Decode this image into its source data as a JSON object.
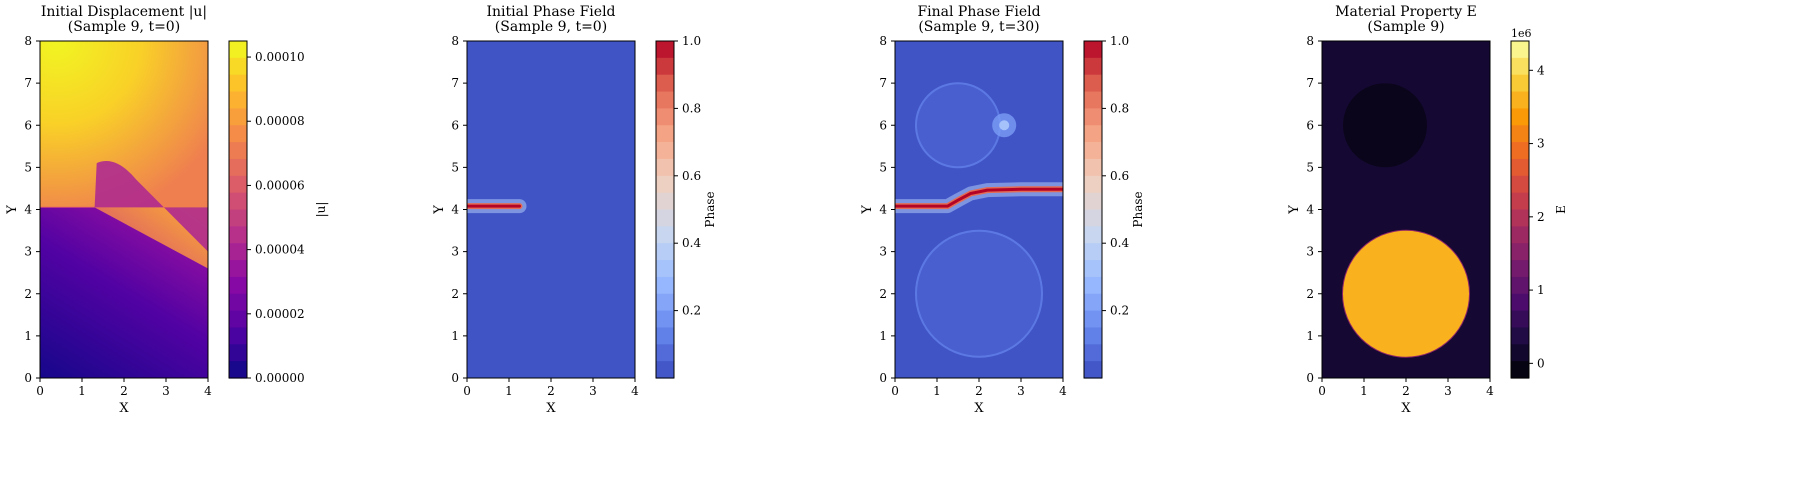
{
  "chart_data": [
    {
      "type": "heatmap",
      "title": "Initial Displacement |u|\n(Sample 9, t=0)",
      "xlabel": "X",
      "ylabel": "Y",
      "xlim": [
        0,
        4
      ],
      "ylim": [
        0,
        8
      ],
      "x_ticks": [
        "0",
        "1",
        "2",
        "3",
        "4"
      ],
      "y_ticks": [
        "0",
        "1",
        "2",
        "3",
        "4",
        "5",
        "6",
        "7",
        "8"
      ],
      "colormap": "plasma",
      "colorbar": {
        "label": "|u|",
        "range": [
          0,
          0.000105
        ],
        "ticks": [
          0,
          2e-05,
          4e-05,
          6e-05,
          8e-05,
          0.0001
        ],
        "tick_labels": [
          "0.00000",
          "0.00002",
          "0.00004",
          "0.00006",
          "0.00008",
          "0.00010"
        ],
        "offset_label": ""
      },
      "features": {
        "crack": {
          "x": [
            0,
            1.3
          ],
          "y": 4.05
        },
        "field_description": "low values below the crack, high values above; maximum near top-left"
      }
    },
    {
      "type": "heatmap",
      "title": "Initial Phase Field\n(Sample 9, t=0)",
      "xlabel": "X",
      "ylabel": "Y",
      "xlim": [
        0,
        4
      ],
      "ylim": [
        0,
        8
      ],
      "x_ticks": [
        "0",
        "1",
        "2",
        "3",
        "4"
      ],
      "y_ticks": [
        "0",
        "1",
        "2",
        "3",
        "4",
        "5",
        "6",
        "7",
        "8"
      ],
      "colormap": "coolwarm",
      "colorbar": {
        "label": "Phase",
        "range": [
          0,
          1
        ],
        "ticks": [
          0.2,
          0.4,
          0.6,
          0.8,
          1.0
        ],
        "tick_labels": [
          "0.2",
          "0.4",
          "0.6",
          "0.8",
          "1.0"
        ],
        "offset_label": ""
      },
      "features": {
        "crack_path": [
          [
            0,
            4.08
          ],
          [
            1.25,
            4.08
          ]
        ],
        "inclusions": []
      }
    },
    {
      "type": "heatmap",
      "title": "Final Phase Field\n(Sample 9, t=30)",
      "xlabel": "X",
      "ylabel": "Y",
      "xlim": [
        0,
        4
      ],
      "ylim": [
        0,
        8
      ],
      "x_ticks": [
        "0",
        "1",
        "2",
        "3",
        "4"
      ],
      "y_ticks": [
        "0",
        "1",
        "2",
        "3",
        "4",
        "5",
        "6",
        "7",
        "8"
      ],
      "colormap": "coolwarm",
      "colorbar": {
        "label": "Phase",
        "range": [
          0,
          1
        ],
        "ticks": [
          0.2,
          0.4,
          0.6,
          0.8,
          1.0
        ],
        "tick_labels": [
          "0.2",
          "0.4",
          "0.6",
          "0.8",
          "1.0"
        ],
        "offset_label": ""
      },
      "features": {
        "crack_path": [
          [
            0,
            4.08
          ],
          [
            1.25,
            4.08
          ],
          [
            1.5,
            4.22
          ],
          [
            1.8,
            4.38
          ],
          [
            2.2,
            4.46
          ],
          [
            3.0,
            4.48
          ],
          [
            4.0,
            4.48
          ]
        ],
        "inclusions": [
          {
            "cx": 1.5,
            "cy": 6.0,
            "r": 1.0
          },
          {
            "cx": 2.0,
            "cy": 2.0,
            "r": 1.5
          }
        ],
        "hotspot": {
          "x": 2.6,
          "y": 6.0
        }
      }
    },
    {
      "type": "heatmap",
      "title": "Material Property E\n(Sample 9)",
      "xlabel": "X",
      "ylabel": "Y",
      "xlim": [
        0,
        4
      ],
      "ylim": [
        0,
        8
      ],
      "x_ticks": [
        "0",
        "1",
        "2",
        "3",
        "4"
      ],
      "y_ticks": [
        "0",
        "1",
        "2",
        "3",
        "4",
        "5",
        "6",
        "7",
        "8"
      ],
      "colormap": "inferno",
      "colorbar": {
        "label": "E",
        "range": [
          -0.2,
          4.4
        ],
        "ticks": [
          0,
          1,
          2,
          3,
          4
        ],
        "tick_labels": [
          "0",
          "1",
          "2",
          "3",
          "4"
        ],
        "offset_label": "1e6"
      },
      "features": {
        "background_value": 0.2,
        "inclusions": [
          {
            "cx": 1.5,
            "cy": 6.0,
            "r": 1.0,
            "value": 0.0
          },
          {
            "cx": 2.0,
            "cy": 2.0,
            "r": 1.5,
            "value": 3.6
          }
        ]
      }
    }
  ]
}
